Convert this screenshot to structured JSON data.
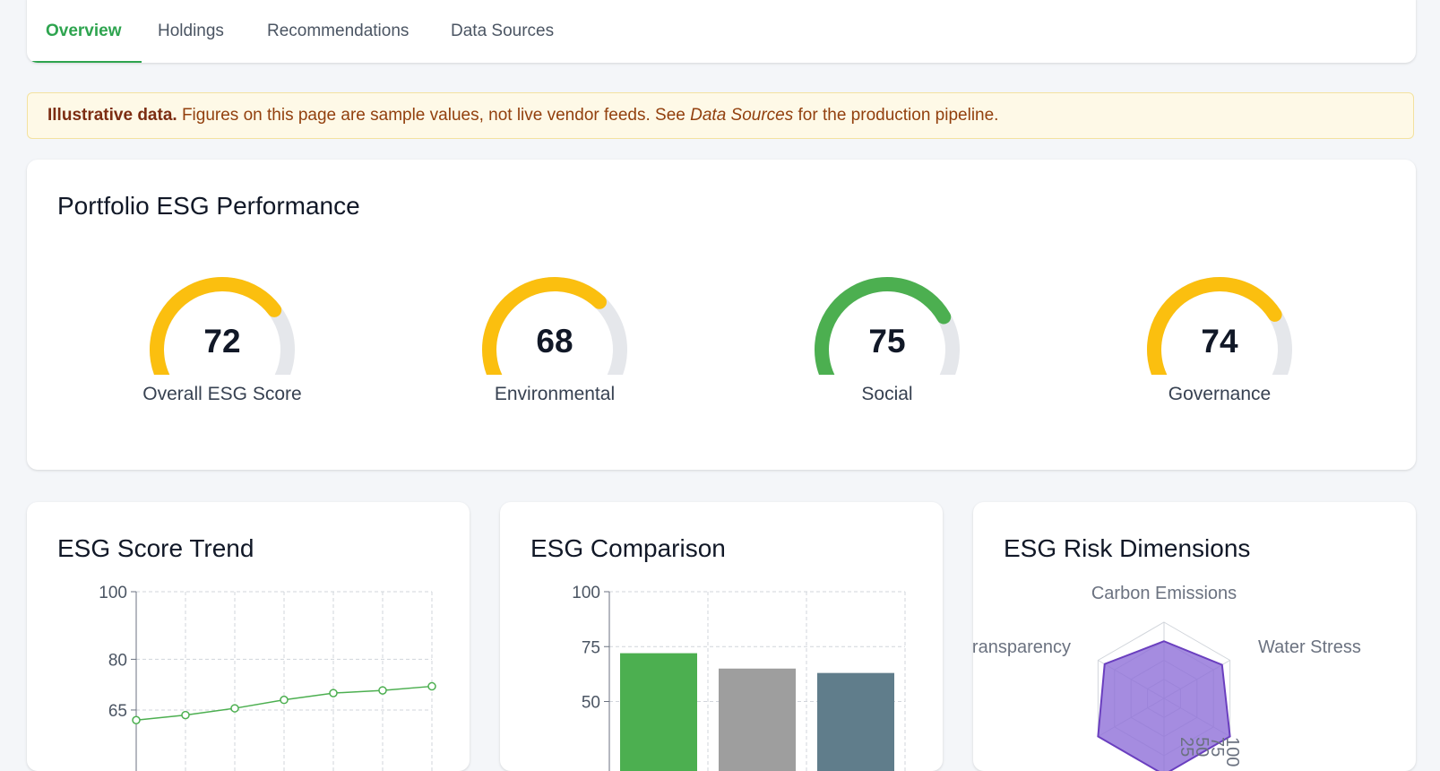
{
  "tabs": [
    {
      "label": "Overview",
      "active": true
    },
    {
      "label": "Holdings",
      "active": false
    },
    {
      "label": "Recommendations",
      "active": false
    },
    {
      "label": "Data Sources",
      "active": false
    }
  ],
  "banner": {
    "bold": "Illustrative data.",
    "text1": " Figures on this page are sample values, not live vendor feeds. See ",
    "link": "Data Sources",
    "text2": " for the production pipeline."
  },
  "performance": {
    "title": "Portfolio ESG Performance",
    "gauges": [
      {
        "value": "72",
        "score": 72,
        "label": "Overall ESG Score",
        "color": "#fbbf0f"
      },
      {
        "value": "68",
        "score": 68,
        "label": "Environmental",
        "color": "#fbbf0f"
      },
      {
        "value": "75",
        "score": 75,
        "label": "Social",
        "color": "#4caf50"
      },
      {
        "value": "74",
        "score": 74,
        "label": "Governance",
        "color": "#fbbf0f"
      }
    ]
  },
  "trend": {
    "title": "ESG Score Trend",
    "chart_data": {
      "type": "line",
      "x": [
        1,
        2,
        3,
        4,
        5,
        6,
        7
      ],
      "values": [
        62,
        63.5,
        65.5,
        68,
        70,
        70.8,
        72
      ],
      "ylim": [
        60,
        100
      ],
      "y_ticks": [
        "100",
        "80",
        "65"
      ],
      "color": "#4caf50",
      "grid": true
    }
  },
  "comparison": {
    "title": "ESG Comparison",
    "chart_data": {
      "type": "bar",
      "values": [
        72,
        65,
        63
      ],
      "colors": [
        "#4caf50",
        "#9e9e9e",
        "#607d8b"
      ],
      "ylim": [
        0,
        100
      ],
      "y_ticks": [
        "100",
        "75",
        "50"
      ],
      "grid": true
    }
  },
  "radar": {
    "title": "ESG Risk Dimensions",
    "chart_data": {
      "type": "radar",
      "axes": [
        "Carbon Emissions",
        "Water Stress",
        "Transparency"
      ],
      "values": [
        75,
        88,
        90
      ],
      "rmax": 100,
      "r_ticks": [
        "25",
        "50",
        "75",
        "100"
      ],
      "fill": "#8e6fd8",
      "stroke": "#6a3fbf"
    }
  }
}
